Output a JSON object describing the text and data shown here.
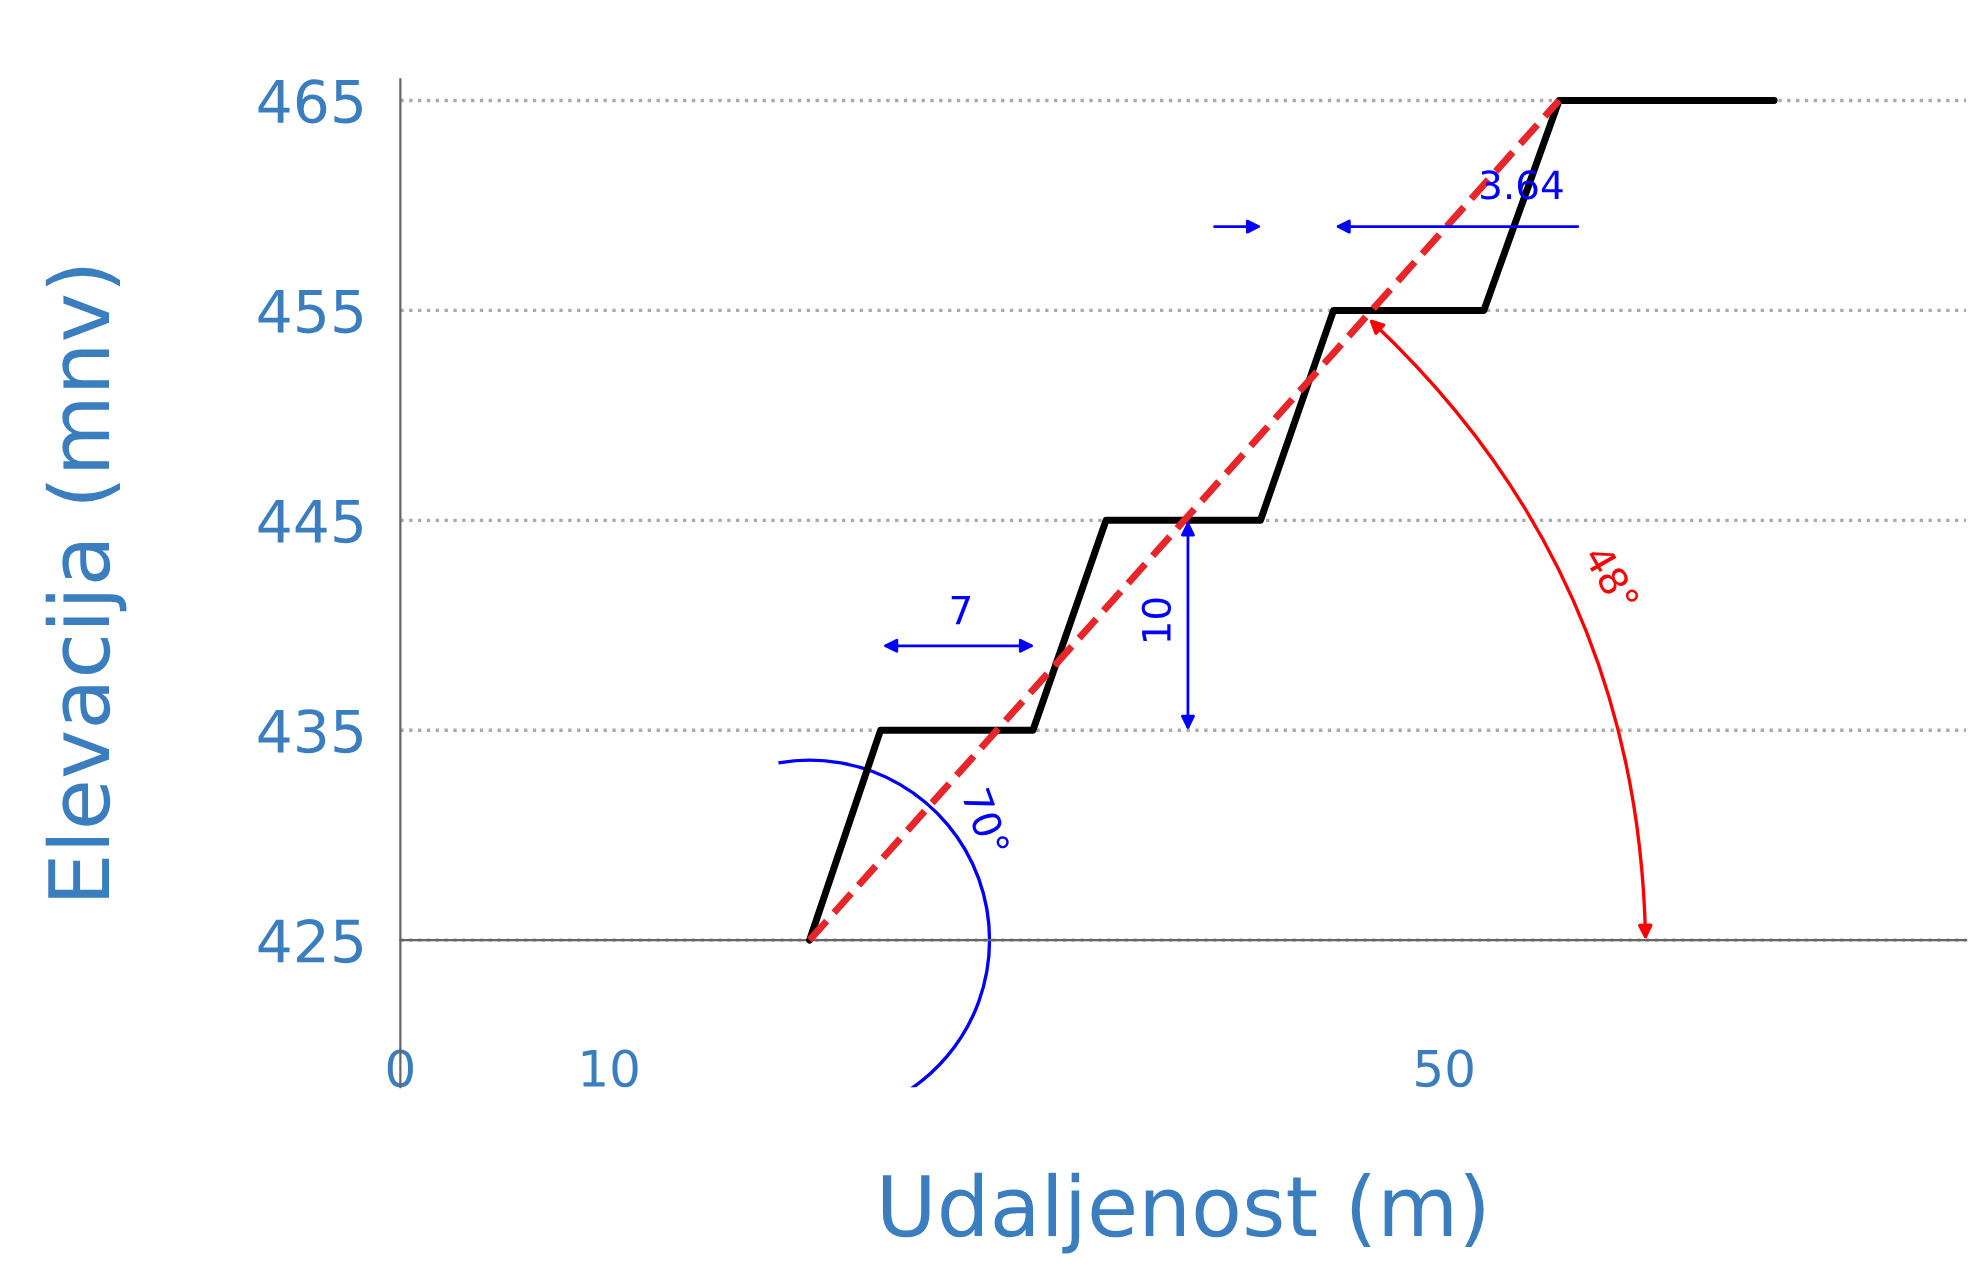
{
  "chart_data": {
    "type": "line",
    "xlabel": "Udaljenost (m)",
    "ylabel": "Elevacija (mnv)",
    "xlim": [
      0,
      75
    ],
    "ylim": [
      418,
      466
    ],
    "xticks": [
      0,
      10,
      50
    ],
    "yticks": [
      425,
      435,
      445,
      455,
      465
    ],
    "grid": "y",
    "line_style": "solid",
    "series": [
      {
        "x": [
          19.6,
          23.0,
          30.3,
          33.8,
          41.2,
          44.7,
          51.9,
          55.5,
          65.8
        ],
        "values": [
          425,
          435,
          435,
          445,
          445,
          455,
          455,
          465,
          465
        ],
        "color": "#000000"
      },
      {
        "x": [
          19.6,
          55.5
        ],
        "values": [
          425,
          465
        ],
        "color": "#e8262a",
        "line_style": "dashed"
      }
    ],
    "annotations": [
      "7",
      "10",
      "3.64",
      "70°",
      "48°"
    ]
  }
}
